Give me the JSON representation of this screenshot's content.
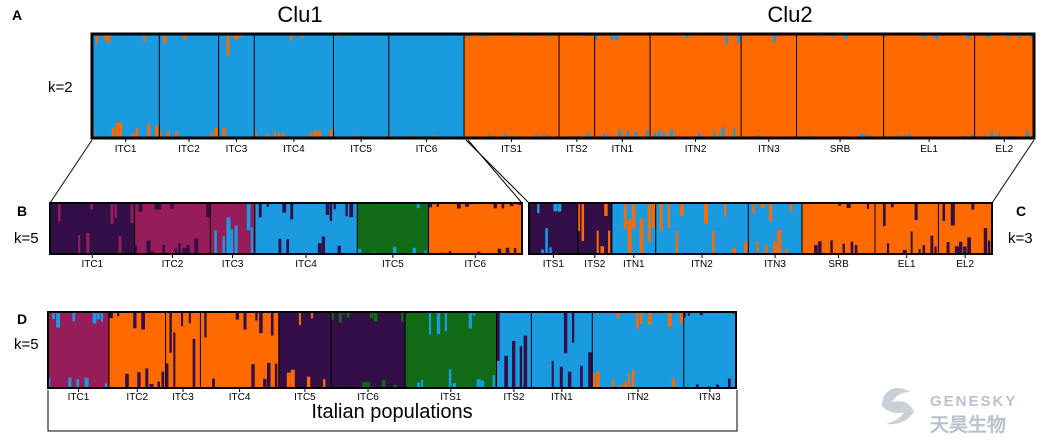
{
  "colors": {
    "blue": "#1a9be0",
    "orange": "#ff6a00",
    "magenta": "#961d5a",
    "purple": "#320f47",
    "green": "#106a16",
    "frame": "#000000",
    "watermark": "#b9c2cc"
  },
  "watermark": {
    "logo_icon": "genesky-swirl-icon",
    "text_en": "GENESKY",
    "text_cn": "天昊生物"
  },
  "chart_data": [
    {
      "panel": "A",
      "type": "structure-barplot",
      "k_label": "k=2",
      "cluster_labels": [
        "Clu1",
        "Clu2"
      ],
      "populations": [
        "ITC1",
        "ITC2",
        "ITC3",
        "ITC4",
        "ITC5",
        "ITC6",
        "ITS1",
        "ITS2",
        "ITN1",
        "ITN2",
        "ITN3",
        "SRB",
        "EL1",
        "EL2"
      ],
      "population_weights": [
        17,
        15,
        9,
        20,
        14,
        19,
        24,
        9,
        14,
        23,
        14,
        22,
        23,
        15
      ],
      "dominant_cluster": [
        "blue",
        "blue",
        "blue",
        "blue",
        "blue",
        "blue",
        "orange",
        "orange",
        "orange",
        "orange",
        "orange",
        "orange",
        "orange",
        "orange"
      ],
      "secondary_cluster": [
        "orange",
        "orange",
        "orange",
        "orange",
        "orange",
        "orange",
        "blue",
        "blue",
        "blue",
        "blue",
        "blue",
        "blue",
        "blue",
        "blue"
      ],
      "admixture": [
        0.06,
        0.05,
        0.08,
        0.03,
        0.01,
        0.01,
        0.02,
        0.02,
        0.04,
        0.04,
        0.03,
        0.02,
        0.02,
        0.03
      ]
    },
    {
      "panel": "B",
      "type": "structure-barplot",
      "k_label": "k=5",
      "populations": [
        "ITC1",
        "ITC2",
        "ITC3",
        "ITC4",
        "ITC5",
        "ITC6"
      ],
      "population_weights": [
        19,
        17,
        10,
        23,
        16,
        21
      ],
      "dominant_cluster": [
        "purple",
        "magenta",
        "magenta",
        "blue",
        "green",
        "orange"
      ],
      "secondary_cluster": [
        "magenta",
        "purple",
        "blue",
        "purple",
        "blue",
        "purple"
      ],
      "admixture": [
        0.18,
        0.12,
        0.3,
        0.14,
        0.06,
        0.05
      ]
    },
    {
      "panel": "C",
      "type": "structure-barplot",
      "k_label": "k=3",
      "populations": [
        "ITS1",
        "ITS2",
        "ITN1",
        "ITN2",
        "ITN3",
        "SRB",
        "EL1",
        "EL2"
      ],
      "population_weights": [
        10,
        7,
        9,
        19,
        11,
        15,
        13,
        11
      ],
      "dominant_cluster": [
        "purple",
        "purple",
        "blue",
        "blue",
        "blue",
        "orange",
        "orange",
        "orange"
      ],
      "secondary_cluster": [
        "blue",
        "orange",
        "orange",
        "orange",
        "orange",
        "purple",
        "purple",
        "purple"
      ],
      "admixture": [
        0.2,
        0.3,
        0.35,
        0.25,
        0.2,
        0.12,
        0.18,
        0.2
      ]
    },
    {
      "panel": "D",
      "type": "structure-barplot",
      "k_label": "k=5",
      "group_label": "Italian populations",
      "populations": [
        "ITC1",
        "ITC2",
        "ITC3",
        "ITC4",
        "ITC5",
        "ITC6",
        "ITS1",
        "ITS2",
        "ITN1",
        "ITN2",
        "ITN3"
      ],
      "population_weights": [
        14,
        13,
        8,
        18,
        12,
        17,
        21,
        8,
        14,
        21,
        12
      ],
      "dominant_cluster": [
        "magenta",
        "orange",
        "orange",
        "orange",
        "purple",
        "purple",
        "green",
        "blue",
        "blue",
        "blue",
        "blue"
      ],
      "secondary_cluster": [
        "blue",
        "purple",
        "purple",
        "purple",
        "orange",
        "green",
        "blue",
        "purple",
        "purple",
        "orange",
        "purple"
      ],
      "admixture": [
        0.08,
        0.12,
        0.3,
        0.15,
        0.1,
        0.06,
        0.12,
        0.3,
        0.25,
        0.1,
        0.05
      ]
    }
  ]
}
